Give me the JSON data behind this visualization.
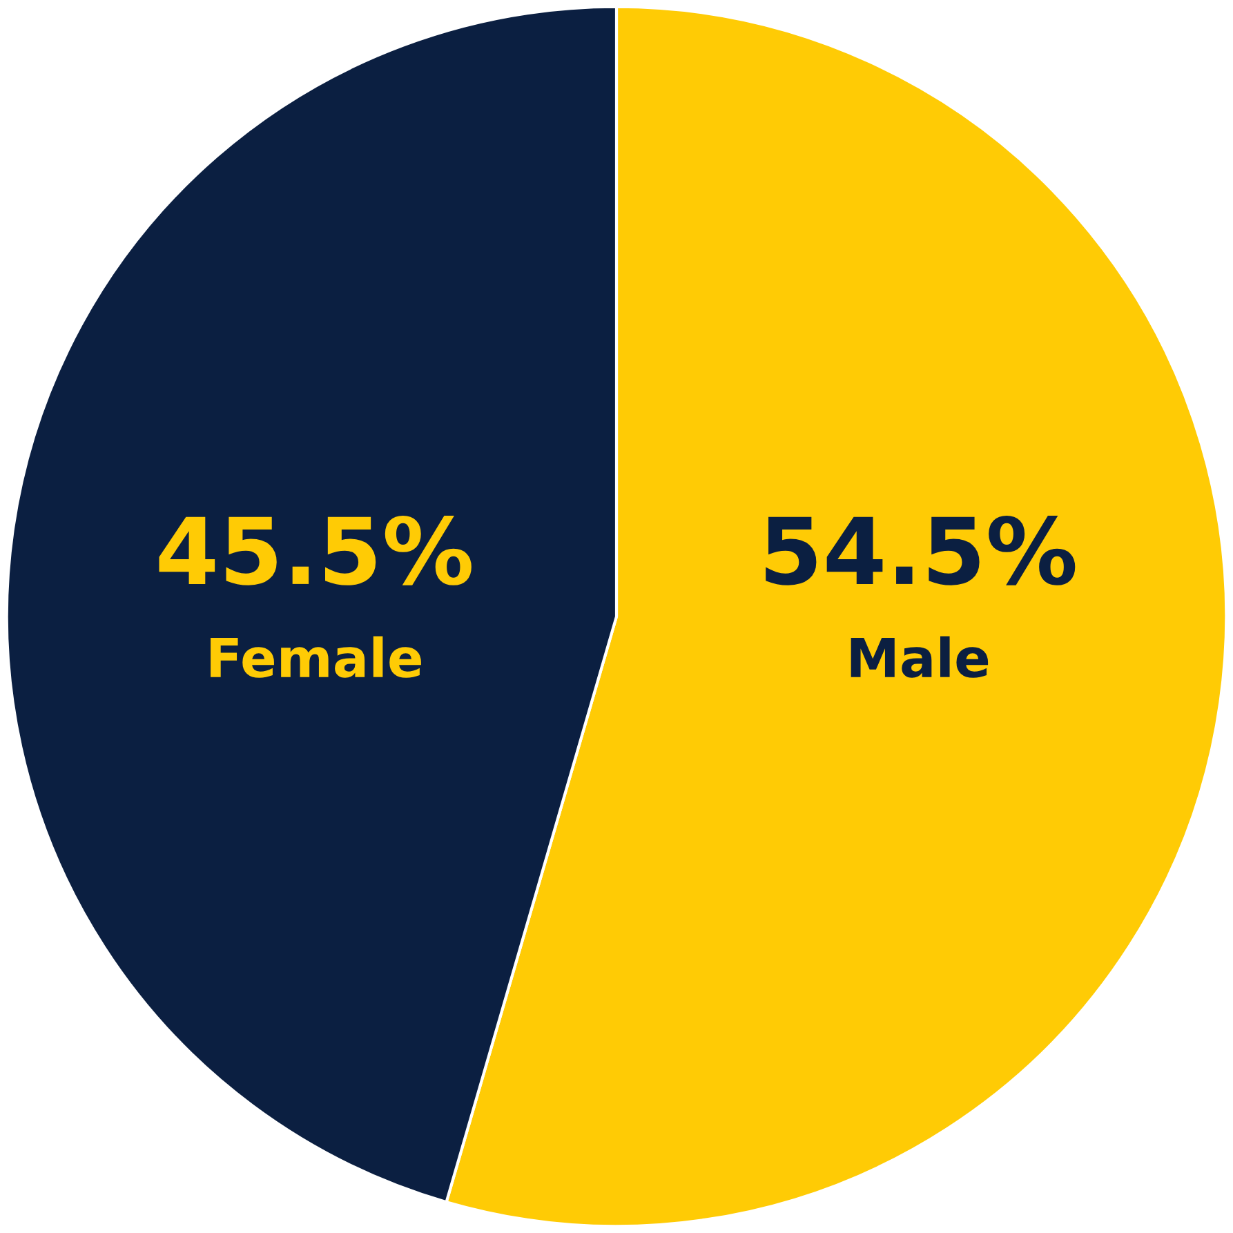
{
  "chart_data": {
    "type": "pie",
    "categories": [
      "Male",
      "Female"
    ],
    "values": [
      54.5,
      45.5
    ],
    "colors": [
      "#ffcb05",
      "#0b1f41"
    ],
    "value_labels": [
      "54.5%",
      "45.5%"
    ]
  }
}
